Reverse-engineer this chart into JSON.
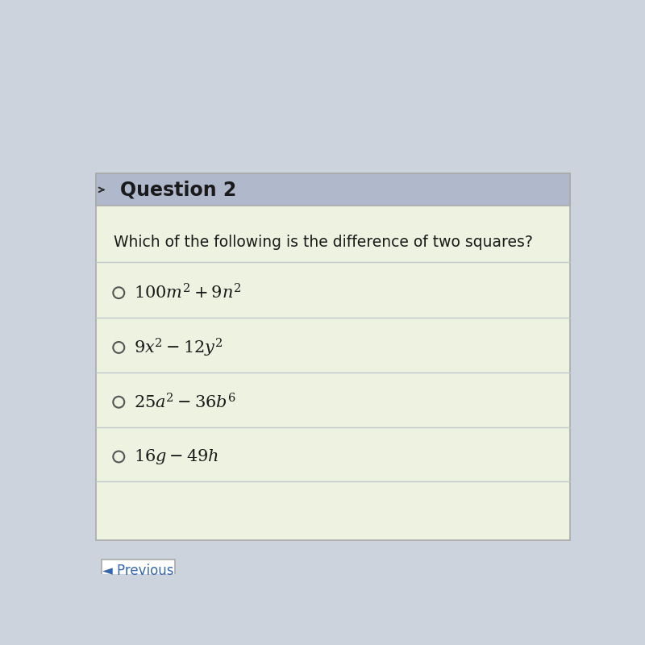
{
  "title": "Question 2",
  "question": "Which of the following is the difference of two squares?",
  "options": [
    "$100m^2 + 9n^2$",
    "$9x^2 - 12y^2$",
    "$25a^2 - 36b^6$",
    "$16g - 49h$"
  ],
  "header_bg": "#b0b8cc",
  "body_bg": "#eef2e0",
  "outer_bg": "#cdd3dc",
  "header_text_color": "#1a1a1a",
  "question_text_color": "#1a1a1a",
  "option_text_color": "#1a1a1a",
  "divider_color": "#c0c8d0",
  "circle_color": "#555555",
  "prev_button_bg": "#ffffff",
  "prev_button_text": "◄ Previous",
  "prev_button_border": "#aaaaaa",
  "prev_button_text_color": "#3366aa"
}
